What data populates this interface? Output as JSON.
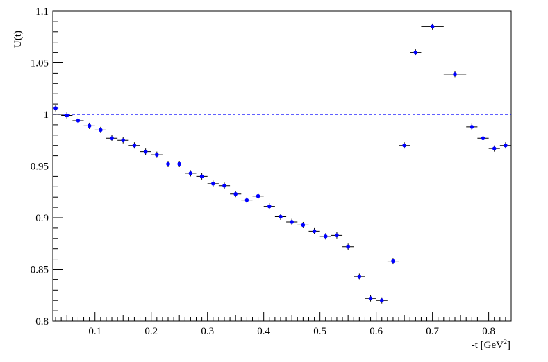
{
  "chart_data": {
    "type": "scatter",
    "ylabel": "U(t)",
    "xlabel_base": "-t [GeV",
    "xlabel_sup": "2",
    "xlabel_tail": "]",
    "xlim": [
      0.025,
      0.84
    ],
    "ylim": [
      0.8,
      1.1
    ],
    "x_ticks": [
      {
        "value": 0.1,
        "label": "0.1"
      },
      {
        "value": 0.2,
        "label": "0.2"
      },
      {
        "value": 0.3,
        "label": "0.3"
      },
      {
        "value": 0.4,
        "label": "0.4"
      },
      {
        "value": 0.5,
        "label": "0.5"
      },
      {
        "value": 0.6,
        "label": "0.6"
      },
      {
        "value": 0.7,
        "label": "0.7"
      },
      {
        "value": 0.8,
        "label": "0.8"
      }
    ],
    "y_ticks": [
      {
        "value": 0.8,
        "label": "0.8"
      },
      {
        "value": 0.85,
        "label": "0.85"
      },
      {
        "value": 0.9,
        "label": "0.9"
      },
      {
        "value": 0.95,
        "label": "0.95"
      },
      {
        "value": 1.0,
        "label": "1"
      },
      {
        "value": 1.05,
        "label": "1.05"
      },
      {
        "value": 1.1,
        "label": "1.1"
      }
    ],
    "reference_line": {
      "y": 1.0,
      "style": "dashed",
      "color": "#0000ff"
    },
    "marker_color": "#0000ff",
    "errorbar_color": "#000000",
    "grid": false,
    "points": [
      {
        "x": 0.03,
        "y": 1.006,
        "xerr": 0.005,
        "yerr": 0.003
      },
      {
        "x": 0.05,
        "y": 0.999,
        "xerr": 0.01,
        "yerr": 0.003
      },
      {
        "x": 0.07,
        "y": 0.994,
        "xerr": 0.01,
        "yerr": 0.003
      },
      {
        "x": 0.09,
        "y": 0.989,
        "xerr": 0.01,
        "yerr": 0.003
      },
      {
        "x": 0.11,
        "y": 0.985,
        "xerr": 0.01,
        "yerr": 0.003
      },
      {
        "x": 0.13,
        "y": 0.977,
        "xerr": 0.01,
        "yerr": 0.003
      },
      {
        "x": 0.15,
        "y": 0.975,
        "xerr": 0.01,
        "yerr": 0.003
      },
      {
        "x": 0.17,
        "y": 0.97,
        "xerr": 0.01,
        "yerr": 0.003
      },
      {
        "x": 0.19,
        "y": 0.964,
        "xerr": 0.01,
        "yerr": 0.003
      },
      {
        "x": 0.21,
        "y": 0.961,
        "xerr": 0.01,
        "yerr": 0.003
      },
      {
        "x": 0.23,
        "y": 0.952,
        "xerr": 0.01,
        "yerr": 0.003
      },
      {
        "x": 0.25,
        "y": 0.952,
        "xerr": 0.01,
        "yerr": 0.003
      },
      {
        "x": 0.27,
        "y": 0.943,
        "xerr": 0.01,
        "yerr": 0.003
      },
      {
        "x": 0.29,
        "y": 0.94,
        "xerr": 0.01,
        "yerr": 0.003
      },
      {
        "x": 0.31,
        "y": 0.933,
        "xerr": 0.01,
        "yerr": 0.003
      },
      {
        "x": 0.33,
        "y": 0.931,
        "xerr": 0.01,
        "yerr": 0.003
      },
      {
        "x": 0.35,
        "y": 0.923,
        "xerr": 0.01,
        "yerr": 0.003
      },
      {
        "x": 0.37,
        "y": 0.917,
        "xerr": 0.01,
        "yerr": 0.003
      },
      {
        "x": 0.39,
        "y": 0.921,
        "xerr": 0.01,
        "yerr": 0.003
      },
      {
        "x": 0.41,
        "y": 0.911,
        "xerr": 0.01,
        "yerr": 0.003
      },
      {
        "x": 0.43,
        "y": 0.901,
        "xerr": 0.01,
        "yerr": 0.003
      },
      {
        "x": 0.45,
        "y": 0.896,
        "xerr": 0.01,
        "yerr": 0.003
      },
      {
        "x": 0.47,
        "y": 0.893,
        "xerr": 0.01,
        "yerr": 0.003
      },
      {
        "x": 0.49,
        "y": 0.887,
        "xerr": 0.01,
        "yerr": 0.003
      },
      {
        "x": 0.51,
        "y": 0.882,
        "xerr": 0.01,
        "yerr": 0.003
      },
      {
        "x": 0.53,
        "y": 0.883,
        "xerr": 0.01,
        "yerr": 0.003
      },
      {
        "x": 0.55,
        "y": 0.872,
        "xerr": 0.01,
        "yerr": 0.003
      },
      {
        "x": 0.57,
        "y": 0.843,
        "xerr": 0.01,
        "yerr": 0.003
      },
      {
        "x": 0.59,
        "y": 0.822,
        "xerr": 0.01,
        "yerr": 0.003
      },
      {
        "x": 0.61,
        "y": 0.82,
        "xerr": 0.01,
        "yerr": 0.003
      },
      {
        "x": 0.63,
        "y": 0.858,
        "xerr": 0.01,
        "yerr": 0.003
      },
      {
        "x": 0.65,
        "y": 0.97,
        "xerr": 0.01,
        "yerr": 0.003
      },
      {
        "x": 0.67,
        "y": 1.06,
        "xerr": 0.01,
        "yerr": 0.003
      },
      {
        "x": 0.7,
        "y": 1.085,
        "xerr": 0.02,
        "yerr": 0.003
      },
      {
        "x": 0.74,
        "y": 1.039,
        "xerr": 0.02,
        "yerr": 0.003
      },
      {
        "x": 0.77,
        "y": 0.988,
        "xerr": 0.01,
        "yerr": 0.003
      },
      {
        "x": 0.79,
        "y": 0.977,
        "xerr": 0.01,
        "yerr": 0.003
      },
      {
        "x": 0.81,
        "y": 0.967,
        "xerr": 0.01,
        "yerr": 0.003
      },
      {
        "x": 0.83,
        "y": 0.97,
        "xerr": 0.01,
        "yerr": 0.003
      }
    ]
  }
}
